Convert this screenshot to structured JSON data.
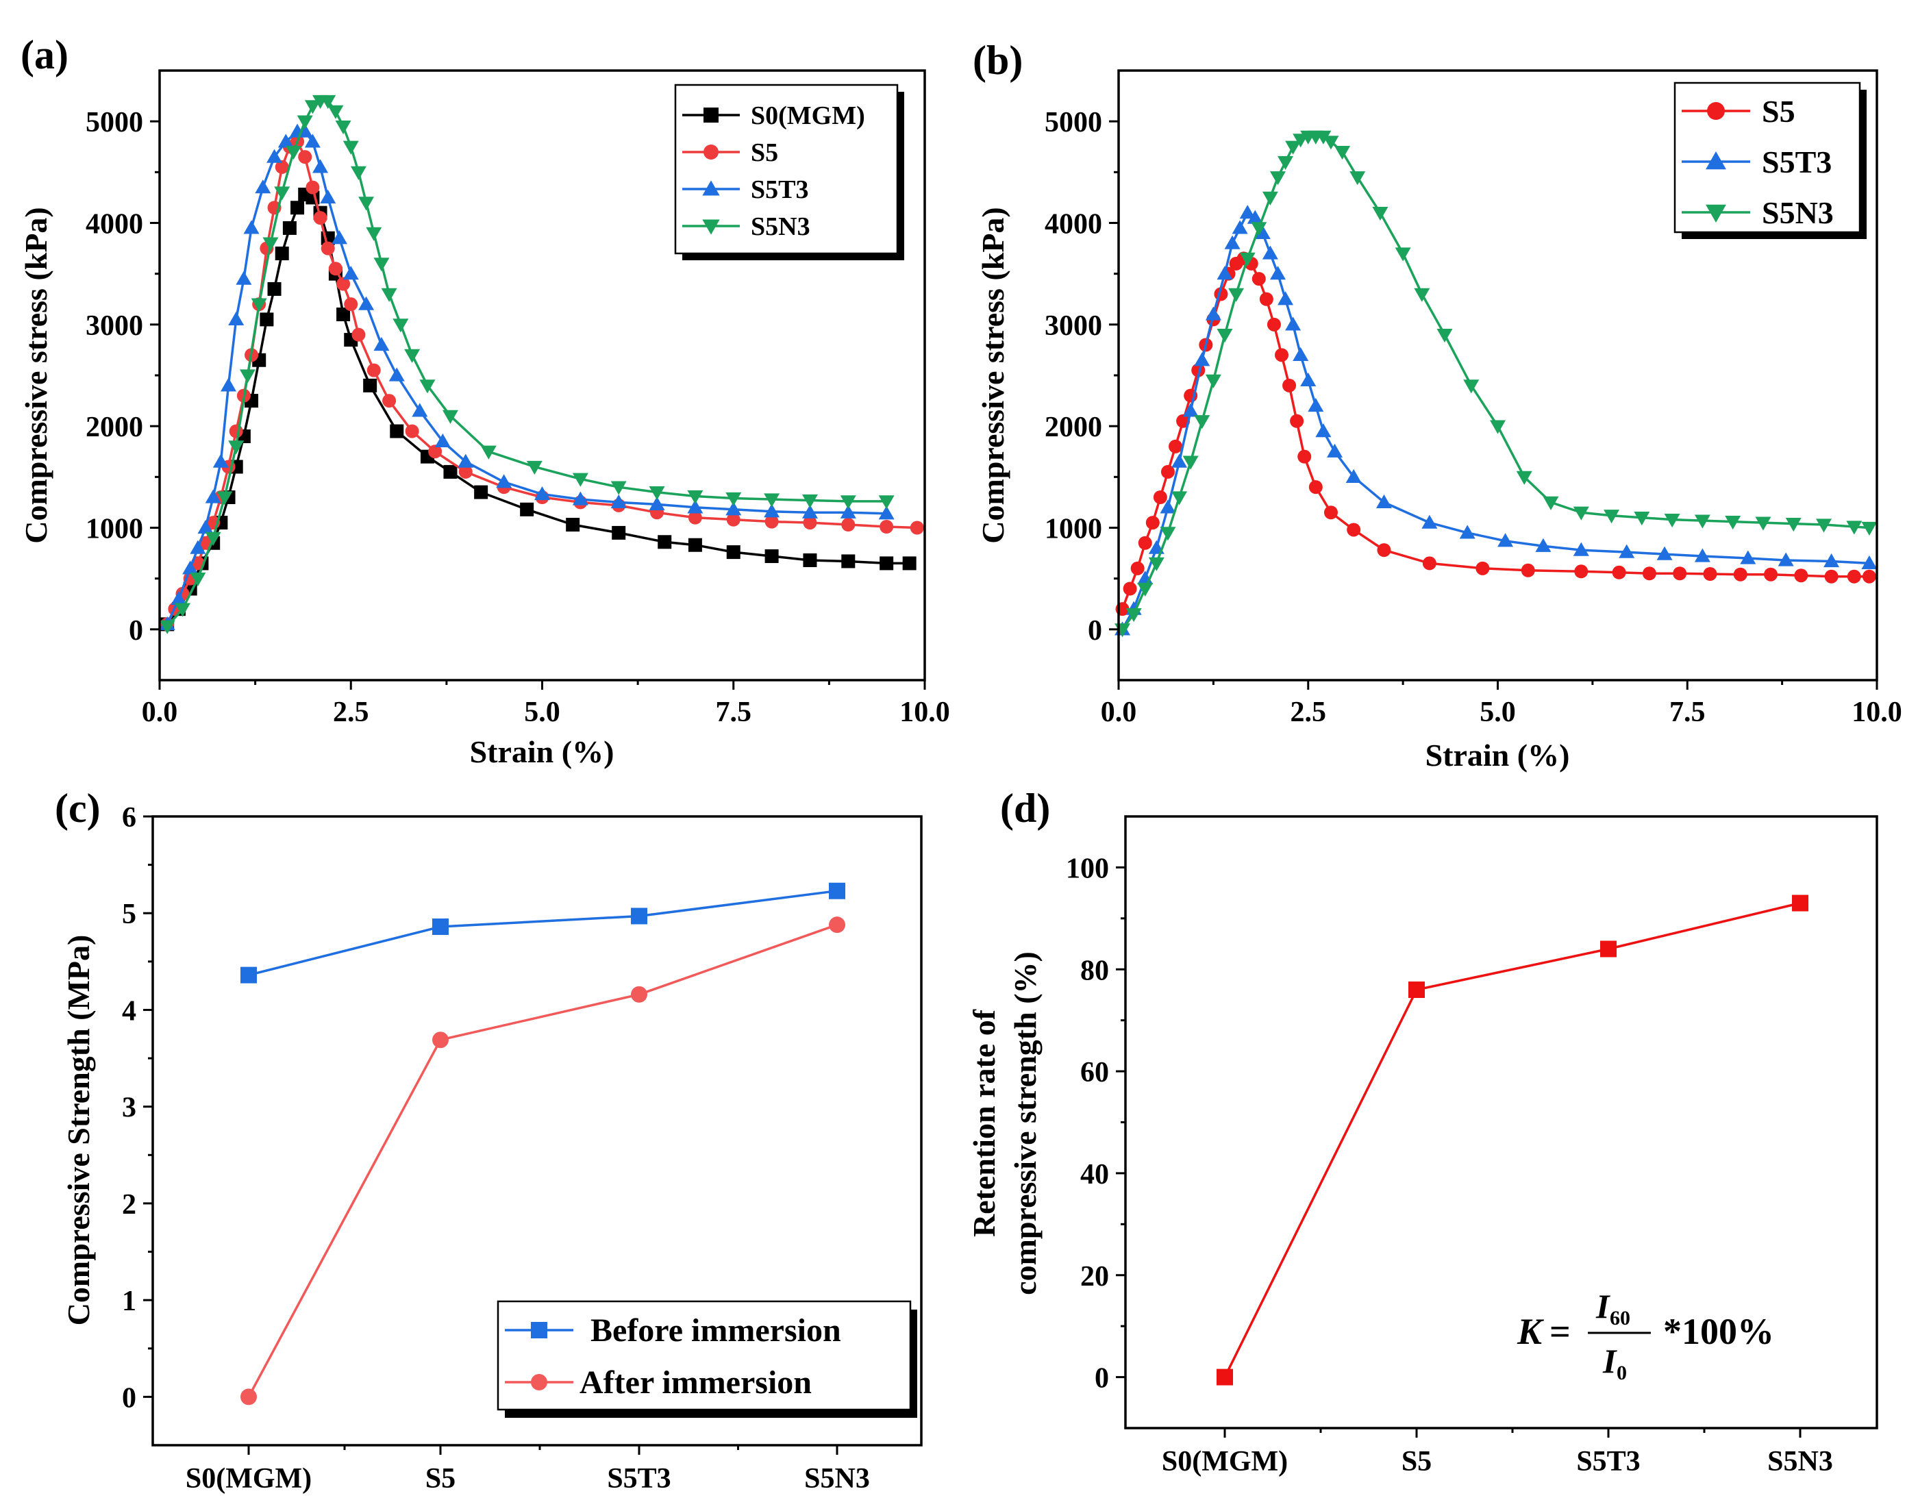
{
  "chart_data": [
    {
      "id": "a",
      "type": "line",
      "panel_label": "(a)",
      "xlabel": "Strain (%)",
      "ylabel": "Compressive stress (kPa)",
      "xlim": [
        0,
        10
      ],
      "ylim": [
        -500,
        5500
      ],
      "xticks": [
        0,
        2.5,
        5,
        7.5,
        10
      ],
      "xtick_labels": [
        "0.0",
        "2.5",
        "5.0",
        "7.5",
        "10.0"
      ],
      "yticks": [
        0,
        1000,
        2000,
        3000,
        4000,
        5000
      ],
      "ytick_labels": [
        "0",
        "1000",
        "2000",
        "3000",
        "4000",
        "5000"
      ],
      "legend_position": "top-right",
      "series": [
        {
          "name": "S0(MGM)",
          "color": "#000000",
          "marker": "square",
          "x": [
            0.1,
            0.25,
            0.4,
            0.55,
            0.7,
            0.8,
            0.9,
            1.0,
            1.1,
            1.2,
            1.3,
            1.4,
            1.5,
            1.6,
            1.7,
            1.8,
            1.9,
            2.0,
            2.1,
            2.2,
            2.3,
            2.4,
            2.5,
            2.75,
            3.1,
            3.5,
            3.8,
            4.2,
            4.8,
            5.4,
            6.0,
            6.6,
            7.0,
            7.5,
            8.0,
            8.5,
            9.0,
            9.5,
            9.8
          ],
          "y": [
            50,
            200,
            400,
            650,
            850,
            1050,
            1300,
            1600,
            1900,
            2250,
            2650,
            3050,
            3350,
            3700,
            3950,
            4150,
            4280,
            4250,
            4100,
            3850,
            3500,
            3100,
            2850,
            2400,
            1950,
            1700,
            1550,
            1350,
            1180,
            1030,
            950,
            860,
            830,
            760,
            720,
            680,
            670,
            650,
            650
          ]
        },
        {
          "name": "S5",
          "color": "#ee3b3b",
          "marker": "circle",
          "x": [
            0.1,
            0.2,
            0.3,
            0.4,
            0.5,
            0.6,
            0.7,
            0.8,
            0.9,
            1.0,
            1.1,
            1.2,
            1.3,
            1.4,
            1.5,
            1.6,
            1.7,
            1.8,
            1.9,
            2.0,
            2.1,
            2.2,
            2.3,
            2.4,
            2.5,
            2.6,
            2.8,
            3.0,
            3.3,
            3.6,
            4.0,
            4.5,
            5.0,
            5.5,
            6.0,
            6.5,
            7.0,
            7.5,
            8.0,
            8.5,
            9.0,
            9.5,
            9.9
          ],
          "y": [
            50,
            200,
            350,
            500,
            650,
            850,
            1050,
            1300,
            1600,
            1950,
            2300,
            2700,
            3200,
            3750,
            4150,
            4550,
            4750,
            4800,
            4650,
            4350,
            4050,
            3750,
            3550,
            3400,
            3200,
            2900,
            2550,
            2250,
            1950,
            1750,
            1550,
            1400,
            1300,
            1250,
            1220,
            1150,
            1100,
            1080,
            1060,
            1050,
            1030,
            1010,
            1000
          ]
        },
        {
          "name": "S5T3",
          "color": "#1f6fe0",
          "marker": "triangle-up",
          "x": [
            0.1,
            0.25,
            0.4,
            0.5,
            0.6,
            0.7,
            0.8,
            0.9,
            1.0,
            1.1,
            1.2,
            1.35,
            1.5,
            1.65,
            1.8,
            1.9,
            2.0,
            2.1,
            2.2,
            2.35,
            2.5,
            2.7,
            2.9,
            3.1,
            3.4,
            3.7,
            4.0,
            4.5,
            5.0,
            5.5,
            6.0,
            6.5,
            7.0,
            7.5,
            8.0,
            8.5,
            9.0,
            9.5
          ],
          "y": [
            50,
            300,
            600,
            800,
            1000,
            1300,
            1650,
            2400,
            3050,
            3450,
            3950,
            4350,
            4650,
            4800,
            4900,
            4900,
            4800,
            4550,
            4250,
            3850,
            3500,
            3200,
            2800,
            2500,
            2150,
            1850,
            1650,
            1450,
            1330,
            1280,
            1250,
            1230,
            1200,
            1180,
            1160,
            1150,
            1150,
            1140
          ]
        },
        {
          "name": "S5N3",
          "color": "#1ba35c",
          "marker": "triangle-down",
          "x": [
            0.1,
            0.3,
            0.5,
            0.7,
            0.85,
            1.0,
            1.15,
            1.3,
            1.45,
            1.6,
            1.75,
            1.9,
            2.0,
            2.1,
            2.2,
            2.3,
            2.4,
            2.5,
            2.6,
            2.7,
            2.8,
            2.9,
            3.0,
            3.15,
            3.3,
            3.5,
            3.8,
            4.3,
            4.9,
            5.5,
            6.0,
            6.5,
            7.0,
            7.5,
            8.0,
            8.5,
            9.0,
            9.5
          ],
          "y": [
            30,
            200,
            500,
            900,
            1300,
            1800,
            2500,
            3200,
            3800,
            4300,
            4700,
            5000,
            5150,
            5200,
            5200,
            5100,
            4950,
            4750,
            4500,
            4200,
            3900,
            3600,
            3300,
            3000,
            2700,
            2400,
            2100,
            1750,
            1600,
            1480,
            1400,
            1350,
            1310,
            1290,
            1280,
            1270,
            1260,
            1260
          ]
        }
      ]
    },
    {
      "id": "b",
      "type": "line",
      "panel_label": "(b)",
      "xlabel": "Strain (%)",
      "ylabel": "Compressive stress (kPa)",
      "xlim": [
        0,
        10
      ],
      "ylim": [
        -500,
        5500
      ],
      "xticks": [
        0,
        2.5,
        5,
        7.5,
        10
      ],
      "xtick_labels": [
        "0.0",
        "2.5",
        "5.0",
        "7.5",
        "10.0"
      ],
      "yticks": [
        0,
        1000,
        2000,
        3000,
        4000,
        5000
      ],
      "ytick_labels": [
        "0",
        "1000",
        "2000",
        "3000",
        "4000",
        "5000"
      ],
      "legend_position": "top-right",
      "series": [
        {
          "name": "S5",
          "color": "#ee1c1c",
          "marker": "circle",
          "x": [
            0.05,
            0.15,
            0.25,
            0.35,
            0.45,
            0.55,
            0.65,
            0.75,
            0.85,
            0.95,
            1.05,
            1.15,
            1.25,
            1.35,
            1.45,
            1.55,
            1.65,
            1.75,
            1.85,
            1.95,
            2.05,
            2.15,
            2.25,
            2.35,
            2.45,
            2.6,
            2.8,
            3.1,
            3.5,
            4.1,
            4.8,
            5.4,
            6.1,
            6.6,
            7.0,
            7.4,
            7.8,
            8.2,
            8.6,
            9.0,
            9.4,
            9.7,
            9.9
          ],
          "y": [
            200,
            400,
            600,
            850,
            1050,
            1300,
            1550,
            1800,
            2050,
            2300,
            2550,
            2800,
            3050,
            3300,
            3500,
            3600,
            3650,
            3600,
            3450,
            3250,
            3000,
            2700,
            2400,
            2050,
            1700,
            1400,
            1150,
            980,
            780,
            650,
            600,
            580,
            570,
            560,
            550,
            550,
            545,
            540,
            540,
            530,
            520,
            520,
            520
          ]
        },
        {
          "name": "S5T3",
          "color": "#1f6fe0",
          "marker": "triangle-up",
          "x": [
            0.05,
            0.2,
            0.35,
            0.5,
            0.65,
            0.8,
            0.95,
            1.1,
            1.25,
            1.4,
            1.5,
            1.6,
            1.7,
            1.8,
            1.9,
            2.0,
            2.1,
            2.2,
            2.3,
            2.4,
            2.5,
            2.6,
            2.7,
            2.85,
            3.1,
            3.5,
            4.1,
            4.6,
            5.1,
            5.6,
            6.1,
            6.7,
            7.2,
            7.7,
            8.3,
            8.8,
            9.4,
            9.9
          ],
          "y": [
            0,
            200,
            500,
            800,
            1200,
            1650,
            2150,
            2650,
            3100,
            3500,
            3800,
            3950,
            4100,
            4050,
            3900,
            3700,
            3500,
            3250,
            3000,
            2700,
            2450,
            2200,
            1950,
            1750,
            1500,
            1250,
            1050,
            950,
            870,
            820,
            780,
            760,
            740,
            720,
            700,
            680,
            670,
            650
          ]
        },
        {
          "name": "S5N3",
          "color": "#1ba35c",
          "marker": "triangle-down",
          "x": [
            0.05,
            0.2,
            0.35,
            0.5,
            0.65,
            0.8,
            0.95,
            1.1,
            1.25,
            1.4,
            1.55,
            1.7,
            1.85,
            2.0,
            2.1,
            2.2,
            2.3,
            2.4,
            2.5,
            2.6,
            2.7,
            2.8,
            2.95,
            3.15,
            3.45,
            3.75,
            4.0,
            4.3,
            4.65,
            5.0,
            5.35,
            5.7,
            6.1,
            6.5,
            6.9,
            7.3,
            7.7,
            8.1,
            8.5,
            8.9,
            9.3,
            9.7,
            9.9
          ],
          "y": [
            0,
            150,
            400,
            650,
            950,
            1300,
            1650,
            2050,
            2450,
            2900,
            3300,
            3650,
            3950,
            4250,
            4450,
            4600,
            4750,
            4820,
            4850,
            4850,
            4850,
            4800,
            4700,
            4450,
            4100,
            3700,
            3300,
            2900,
            2400,
            2000,
            1500,
            1250,
            1150,
            1120,
            1100,
            1080,
            1070,
            1060,
            1050,
            1040,
            1030,
            1010,
            1000
          ]
        }
      ]
    },
    {
      "id": "c",
      "type": "line",
      "panel_label": "(c)",
      "xlabel": "",
      "ylabel": "Compressive Strength (MPa)",
      "categories": [
        "S0(MGM)",
        "S5",
        "S5T3",
        "S5N3"
      ],
      "ylim": [
        -0.5,
        6
      ],
      "yticks": [
        0,
        1,
        2,
        3,
        4,
        5,
        6
      ],
      "ytick_labels": [
        "0",
        "1",
        "2",
        "3",
        "4",
        "5",
        "6"
      ],
      "legend_position": "bottom-right",
      "series": [
        {
          "name": "Before immersion",
          "color": "#1f6fe0",
          "marker": "square",
          "values": [
            4.36,
            4.86,
            4.97,
            5.23
          ]
        },
        {
          "name": "After immersion",
          "color": "#f25a5a",
          "marker": "circle",
          "values": [
            0.0,
            3.69,
            4.16,
            4.88
          ]
        }
      ]
    },
    {
      "id": "d",
      "type": "line",
      "panel_label": "(d)",
      "xlabel": "",
      "ylabel_lines": [
        "Retention rate of",
        "compressive strength (%)"
      ],
      "categories": [
        "S0(MGM)",
        "S5",
        "S5T3",
        "S5N3"
      ],
      "ylim": [
        -10,
        110
      ],
      "yticks": [
        0,
        20,
        40,
        60,
        80,
        100
      ],
      "ytick_labels": [
        "0",
        "20",
        "40",
        "60",
        "80",
        "100"
      ],
      "series": [
        {
          "name": "Retention rate",
          "color": "#ee1111",
          "marker": "square",
          "values": [
            0,
            76,
            84,
            93
          ]
        }
      ],
      "annotation": {
        "K": "K",
        "equals": "=",
        "numerator": "I",
        "numerator_sub": "60",
        "denominator": "I",
        "denominator_sub": "0",
        "suffix": "*100%"
      }
    }
  ]
}
